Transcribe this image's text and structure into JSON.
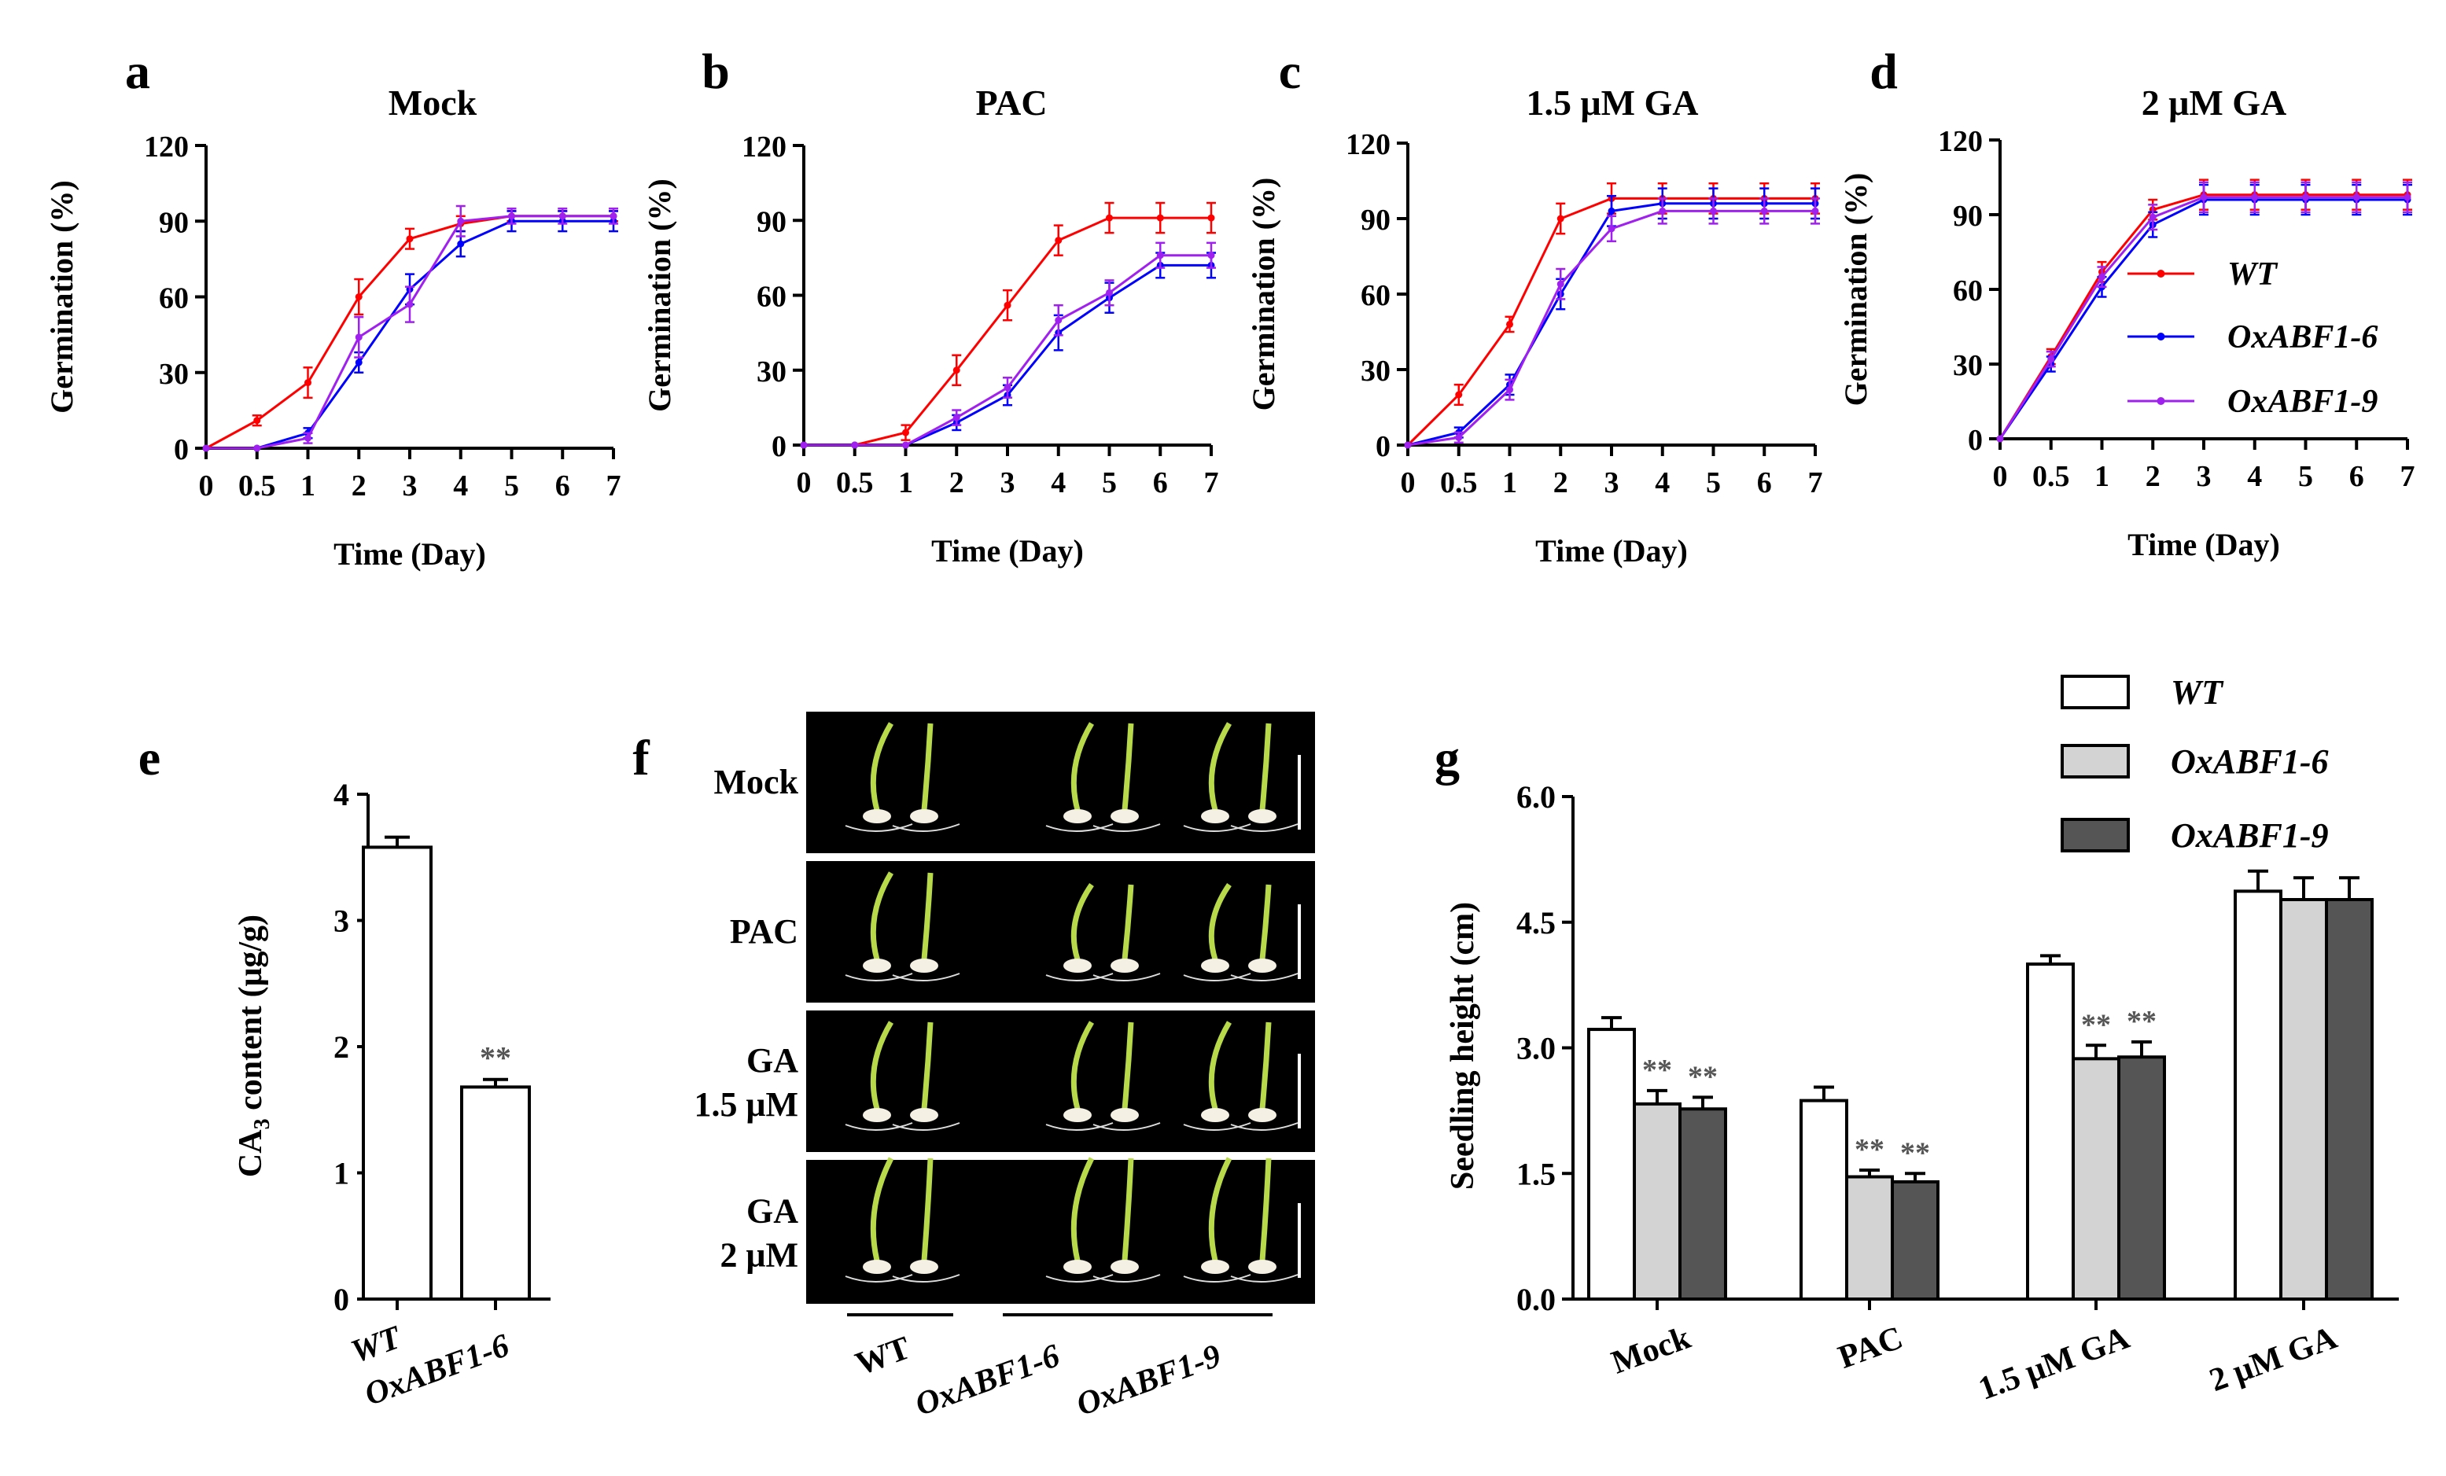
{
  "colors": {
    "axis": "#000000",
    "wt_line": "#ff0000",
    "oxabf1_6_line": "#0000ff",
    "oxabf1_9_line": "#a020f0",
    "bar_wt": "#ffffff",
    "bar_oxabf1_6": "#d3d3d3",
    "bar_oxabf1_9": "#555555",
    "photo_bg": "#000000",
    "seedling_green": "#b7d94a",
    "seed_white": "#f4f1e4",
    "significance": "#555555"
  },
  "panels": {
    "a": {
      "letter": "a",
      "title": "Mock"
    },
    "b": {
      "letter": "b",
      "title": "PAC"
    },
    "c": {
      "letter": "c",
      "title": "1.5 μM GA"
    },
    "d": {
      "letter": "d",
      "title": "2 μM GA"
    },
    "e": {
      "letter": "e"
    },
    "f": {
      "letter": "f",
      "rows": [
        {
          "label_lines": [
            "Mock"
          ]
        },
        {
          "label_lines": [
            "PAC"
          ]
        },
        {
          "label_lines": [
            "GA",
            "1.5 μM"
          ]
        },
        {
          "label_lines": [
            "GA",
            "2 μM"
          ]
        }
      ],
      "genotype_labels": [
        "WT",
        "OxABF1-6",
        "OxABF1-9"
      ]
    },
    "g": {
      "letter": "g"
    }
  },
  "legend_d": [
    "WT",
    "OxABF1-6",
    "OxABF1-9"
  ],
  "legend_g": [
    "WT",
    "OxABF1-6",
    "OxABF1-9"
  ],
  "chart_data": [
    {
      "id": "a",
      "type": "line",
      "title": "Mock",
      "xlabel": "Time (Day)",
      "ylabel": "Germination (%)",
      "categories": [
        "0",
        "0.5",
        "1",
        "2",
        "3",
        "4",
        "5",
        "6",
        "7"
      ],
      "ylim": [
        0,
        120
      ],
      "yticks": [
        "0",
        "30",
        "60",
        "90",
        "120"
      ],
      "series": [
        {
          "name": "WT",
          "values": [
            0,
            11,
            26,
            60,
            83,
            89,
            92,
            92,
            92
          ],
          "errors": [
            0,
            2,
            6,
            7,
            4,
            3,
            2,
            2,
            2
          ]
        },
        {
          "name": "OxABF1-6",
          "values": [
            0,
            0,
            6,
            34,
            63,
            81,
            90,
            90,
            90
          ],
          "errors": [
            0,
            0,
            2,
            4,
            6,
            5,
            4,
            4,
            4
          ]
        },
        {
          "name": "OxABF1-9",
          "values": [
            0,
            0,
            4,
            44,
            57,
            90,
            92,
            92,
            92
          ],
          "errors": [
            0,
            0,
            2,
            8,
            7,
            6,
            3,
            3,
            3
          ]
        }
      ]
    },
    {
      "id": "b",
      "type": "line",
      "title": "PAC",
      "xlabel": "Time (Day)",
      "ylabel": "Germination (%)",
      "categories": [
        "0",
        "0.5",
        "1",
        "2",
        "3",
        "4",
        "5",
        "6",
        "7"
      ],
      "ylim": [
        0,
        120
      ],
      "yticks": [
        "0",
        "30",
        "60",
        "90",
        "120"
      ],
      "series": [
        {
          "name": "WT",
          "values": [
            0,
            0,
            5,
            30,
            56,
            82,
            91,
            91,
            91
          ],
          "errors": [
            0,
            0,
            3,
            6,
            6,
            6,
            6,
            6,
            6
          ]
        },
        {
          "name": "OxABF1-6",
          "values": [
            0,
            0,
            0,
            9,
            20,
            45,
            59,
            72,
            72
          ],
          "errors": [
            0,
            0,
            0,
            3,
            4,
            7,
            6,
            5,
            5
          ]
        },
        {
          "name": "OxABF1-9",
          "values": [
            0,
            0,
            0,
            11,
            23,
            50,
            61,
            76,
            76
          ],
          "errors": [
            0,
            0,
            0,
            3,
            4,
            6,
            5,
            5,
            5
          ]
        }
      ]
    },
    {
      "id": "c",
      "type": "line",
      "title": "1.5 μM GA",
      "xlabel": "Time (Day)",
      "ylabel": "Germination (%)",
      "categories": [
        "0",
        "0.5",
        "1",
        "2",
        "3",
        "4",
        "5",
        "6",
        "7"
      ],
      "ylim": [
        0,
        120
      ],
      "yticks": [
        "0",
        "30",
        "60",
        "90",
        "120"
      ],
      "series": [
        {
          "name": "WT",
          "values": [
            0,
            20,
            48,
            90,
            98,
            98,
            98,
            98,
            98
          ],
          "errors": [
            0,
            4,
            3,
            6,
            6,
            6,
            6,
            6,
            6
          ]
        },
        {
          "name": "OxABF1-6",
          "values": [
            0,
            5,
            24,
            60,
            93,
            96,
            96,
            96,
            96
          ],
          "errors": [
            0,
            2,
            4,
            6,
            6,
            6,
            6,
            6,
            6
          ]
        },
        {
          "name": "OxABF1-9",
          "values": [
            0,
            3,
            22,
            64,
            86,
            93,
            93,
            93,
            93
          ],
          "errors": [
            0,
            2,
            4,
            6,
            5,
            5,
            5,
            5,
            5
          ]
        }
      ]
    },
    {
      "id": "d",
      "type": "line",
      "title": "2 μM GA",
      "xlabel": "Time (Day)",
      "ylabel": "Germination (%)",
      "categories": [
        "0",
        "0.5",
        "1",
        "2",
        "3",
        "4",
        "5",
        "6",
        "7"
      ],
      "ylim": [
        0,
        120
      ],
      "yticks": [
        "0",
        "30",
        "60",
        "90",
        "120"
      ],
      "series": [
        {
          "name": "WT",
          "values": [
            0,
            33,
            67,
            92,
            98,
            98,
            98,
            98,
            98
          ],
          "errors": [
            0,
            3,
            4,
            4,
            6,
            6,
            6,
            6,
            6
          ]
        },
        {
          "name": "OxABF1-6",
          "values": [
            0,
            30,
            61,
            86,
            96,
            96,
            96,
            96,
            96
          ],
          "errors": [
            0,
            3,
            4,
            5,
            6,
            6,
            6,
            6,
            6
          ]
        },
        {
          "name": "OxABF1-9",
          "values": [
            0,
            32,
            65,
            89,
            97,
            97,
            97,
            97,
            97
          ],
          "errors": [
            0,
            3,
            4,
            5,
            6,
            6,
            6,
            6,
            6
          ]
        }
      ]
    },
    {
      "id": "e",
      "type": "bar",
      "ylabel": "CA3 content (μg/g)",
      "ylabel_main": "CA",
      "ylabel_sub": "3",
      "ylabel_rest": " content (μg/g)",
      "categories": [
        "WT",
        "OxABF1-6"
      ],
      "values": [
        3.58,
        1.68
      ],
      "errors": [
        0.08,
        0.06
      ],
      "significance": [
        "",
        "**"
      ],
      "ylim": [
        0,
        4
      ],
      "yticks": [
        "0",
        "1",
        "2",
        "3",
        "4"
      ]
    },
    {
      "id": "g",
      "type": "bar",
      "ylabel": "Seedling height (cm)",
      "categories": [
        "Mock",
        "PAC",
        "1.5 μM GA",
        "2 μM GA"
      ],
      "ylim": [
        0,
        6
      ],
      "yticks": [
        "0.0",
        "1.5",
        "3.0",
        "4.5",
        "6.0"
      ],
      "series": [
        {
          "name": "WT",
          "values": [
            3.22,
            2.37,
            4.0,
            4.87
          ],
          "errors": [
            0.14,
            0.16,
            0.1,
            0.24
          ],
          "significance": [
            "",
            "",
            "",
            ""
          ]
        },
        {
          "name": "OxABF1-6",
          "values": [
            2.33,
            1.46,
            2.87,
            4.77
          ],
          "errors": [
            0.16,
            0.08,
            0.16,
            0.26
          ],
          "significance": [
            "**",
            "**",
            "**",
            ""
          ]
        },
        {
          "name": "OxABF1-9",
          "values": [
            2.27,
            1.4,
            2.89,
            4.77
          ],
          "errors": [
            0.14,
            0.1,
            0.18,
            0.26
          ],
          "significance": [
            "**",
            "**",
            "**",
            ""
          ]
        }
      ]
    }
  ]
}
